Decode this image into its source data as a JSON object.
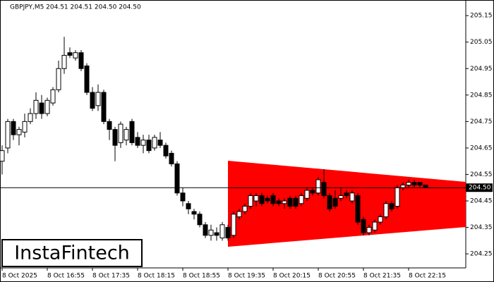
{
  "chart_data": {
    "type": "candlestick",
    "title": "GBPJPY,M5  204.51 204.51 204.50 204.50",
    "logo": "InstaFintech",
    "categories": [
      "8 Oct 2025",
      null,
      null,
      null,
      null,
      null,
      null,
      null,
      "8 Oct 16:55",
      null,
      null,
      null,
      null,
      null,
      null,
      null,
      "8 Oct 17:35",
      null,
      null,
      null,
      null,
      null,
      null,
      null,
      "8 Oct 18:15",
      null,
      null,
      null,
      null,
      null,
      null,
      null,
      "8 Oct 18:55",
      null,
      null,
      null,
      null,
      null,
      null,
      null,
      "8 Oct 19:35",
      null,
      null,
      null,
      null,
      null,
      null,
      null,
      "8 Oct 20:15",
      null,
      null,
      null,
      null,
      null,
      null,
      null,
      "8 Oct 20:55",
      null,
      null,
      null,
      null,
      null,
      null,
      null,
      "8 Oct 21:35",
      null,
      null,
      null,
      null,
      null,
      null,
      null,
      "8 Oct 22:15",
      null,
      null,
      null
    ],
    "open": [
      204.6,
      204.65,
      204.75,
      204.7,
      204.71,
      204.75,
      204.78,
      204.82,
      204.78,
      204.82,
      204.87,
      204.95,
      205.01,
      204.99,
      205.01,
      204.96,
      204.86,
      204.81,
      204.86,
      204.75,
      204.72,
      204.67,
      204.68,
      204.75,
      204.69,
      204.66,
      204.68,
      204.65,
      204.68,
      204.66,
      204.63,
      204.59,
      204.48,
      204.44,
      204.41,
      204.4,
      204.36,
      204.32,
      204.33,
      204.31,
      204.35,
      204.32,
      204.39,
      204.41,
      204.43,
      204.45,
      204.47,
      204.46,
      204.47,
      204.45,
      204.44,
      204.46,
      204.46,
      204.44,
      204.46,
      204.49,
      204.48,
      204.52,
      204.47,
      204.46,
      204.46,
      204.48,
      204.45,
      204.47,
      204.38,
      204.33,
      204.34,
      204.37,
      204.39,
      204.44,
      204.43,
      204.5,
      204.51,
      204.52,
      204.52,
      204.51
    ],
    "high": [
      204.66,
      204.76,
      204.76,
      204.73,
      204.78,
      204.8,
      204.86,
      204.85,
      204.84,
      204.88,
      204.98,
      205.07,
      205.03,
      205.02,
      205.02,
      204.97,
      204.88,
      204.89,
      204.87,
      204.76,
      204.73,
      204.75,
      204.73,
      204.76,
      204.71,
      204.7,
      204.7,
      204.7,
      204.71,
      204.67,
      204.64,
      204.6,
      204.5,
      204.45,
      204.42,
      204.41,
      204.37,
      204.36,
      204.35,
      204.37,
      204.36,
      204.41,
      204.42,
      204.44,
      204.48,
      204.48,
      204.48,
      204.47,
      204.48,
      204.46,
      204.46,
      204.47,
      204.47,
      204.48,
      204.5,
      204.5,
      204.54,
      204.57,
      204.48,
      204.49,
      204.5,
      204.49,
      204.49,
      204.48,
      204.39,
      204.36,
      204.38,
      204.4,
      204.45,
      204.45,
      204.51,
      204.52,
      204.53,
      204.53,
      204.52,
      204.51
    ],
    "low": [
      204.55,
      204.63,
      204.68,
      204.66,
      204.69,
      204.74,
      204.76,
      204.76,
      204.77,
      204.81,
      204.86,
      204.93,
      204.99,
      204.98,
      204.94,
      204.85,
      204.79,
      204.79,
      204.74,
      204.68,
      204.6,
      204.65,
      204.66,
      204.66,
      204.65,
      204.63,
      204.63,
      204.64,
      204.65,
      204.61,
      204.58,
      204.47,
      204.43,
      204.4,
      204.38,
      204.35,
      204.31,
      204.3,
      204.3,
      204.3,
      204.3,
      204.31,
      204.38,
      204.4,
      204.42,
      204.43,
      204.43,
      204.44,
      204.43,
      204.43,
      204.42,
      204.42,
      204.42,
      204.43,
      204.45,
      204.47,
      204.47,
      204.46,
      204.41,
      204.42,
      204.45,
      204.46,
      204.44,
      204.36,
      204.32,
      204.32,
      204.33,
      204.36,
      204.38,
      204.41,
      204.42,
      204.49,
      204.5,
      204.5,
      204.5,
      204.5
    ],
    "close": [
      204.64,
      204.75,
      204.7,
      204.72,
      204.75,
      204.78,
      204.83,
      204.78,
      204.83,
      204.87,
      204.95,
      205.0,
      205.0,
      205.01,
      204.95,
      204.86,
      204.8,
      204.86,
      204.75,
      204.72,
      204.66,
      204.74,
      204.72,
      204.67,
      204.66,
      204.68,
      204.64,
      204.69,
      204.66,
      204.62,
      204.59,
      204.48,
      204.45,
      204.42,
      204.4,
      204.36,
      204.32,
      204.34,
      204.32,
      204.36,
      204.31,
      204.4,
      204.41,
      204.43,
      204.47,
      204.47,
      204.44,
      204.45,
      204.44,
      204.44,
      204.45,
      204.43,
      204.43,
      204.47,
      204.49,
      204.48,
      204.53,
      204.47,
      204.42,
      204.43,
      204.47,
      204.47,
      204.48,
      204.37,
      204.33,
      204.35,
      204.37,
      204.39,
      204.44,
      204.42,
      204.5,
      204.51,
      204.52,
      204.51,
      204.51,
      204.5
    ],
    "ylim": [
      204.197,
      205.209
    ],
    "yticks": [
      204.25,
      204.35,
      204.45,
      204.55,
      204.65,
      204.75,
      204.85,
      204.95,
      205.05,
      205.15
    ],
    "last_price": {
      "value": 204.5,
      "label": "204.50"
    },
    "up_color": "#ffffff",
    "down_color": "#000000"
  }
}
